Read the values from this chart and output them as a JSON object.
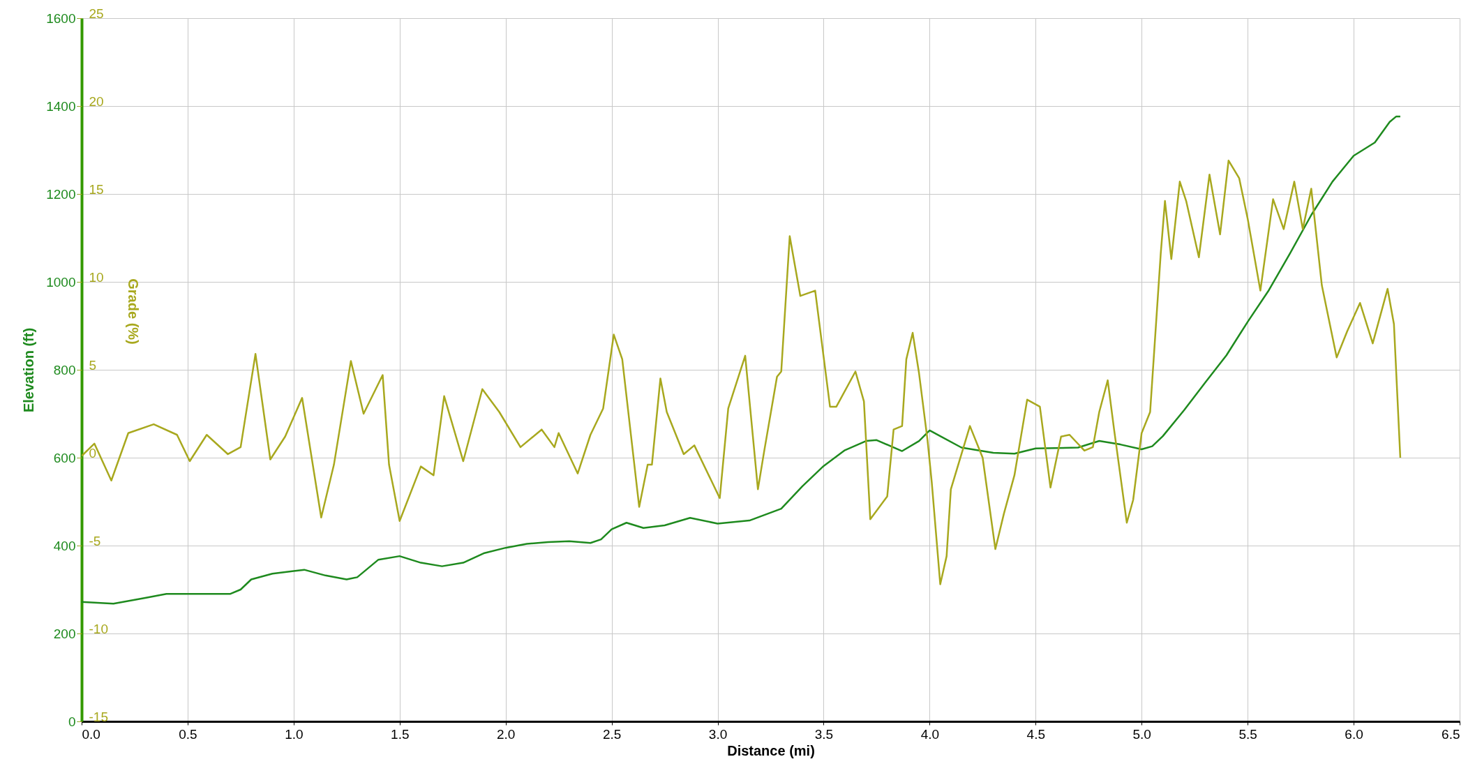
{
  "chart_data": {
    "type": "line",
    "xlabel": "Distance (mi)",
    "ylabel": "Elevation (ft)",
    "y2label": "Grade (%)",
    "xlim": [
      0,
      6.5
    ],
    "xticks": [
      {
        "value": 0,
        "label": "0.0"
      },
      0.5,
      {
        "value": 1,
        "label": "1.0"
      },
      1.5,
      {
        "value": 2,
        "label": "2.0"
      },
      2.5,
      {
        "value": 3,
        "label": "3.0"
      },
      3.5,
      {
        "value": 4,
        "label": "4.0"
      },
      4.5,
      {
        "value": 5,
        "label": "5.0"
      },
      5.5,
      {
        "value": 6,
        "label": "6.0"
      },
      6.5
    ],
    "ylim": [
      0,
      1600
    ],
    "yticks": [
      0,
      200,
      400,
      600,
      800,
      1000,
      1200,
      1400,
      1600
    ],
    "y2lim": [
      -15,
      25
    ],
    "y2ticks": [
      -15,
      -10,
      -5,
      0,
      5,
      10,
      15,
      20,
      25
    ],
    "grid": true,
    "marker": "none",
    "line_style": "solid",
    "series": [
      {
        "color": "#1e8a1e",
        "axis": "y",
        "x": [
          0,
          0.15,
          0.3,
          0.4,
          0.5,
          0.7,
          0.75,
          0.8,
          0.9,
          1.0,
          1.05,
          1.15,
          1.25,
          1.3,
          1.4,
          1.5,
          1.6,
          1.7,
          1.8,
          1.9,
          2.0,
          2.1,
          2.2,
          2.3,
          2.4,
          2.45,
          2.5,
          2.57,
          2.65,
          2.75,
          2.87,
          3.0,
          3.15,
          3.3,
          3.4,
          3.5,
          3.6,
          3.7,
          3.75,
          3.87,
          3.95,
          4.0,
          4.05,
          4.15,
          4.3,
          4.4,
          4.5,
          4.7,
          4.8,
          4.9,
          5.0,
          5.05,
          5.1,
          5.2,
          5.3,
          5.4,
          5.5,
          5.6,
          5.7,
          5.8,
          5.9,
          6.0,
          6.1,
          6.17,
          6.2,
          6.22
        ],
        "values": [
          272,
          268,
          281,
          290,
          290,
          290,
          300,
          323,
          336,
          342,
          345,
          332,
          323,
          328,
          368,
          376,
          361,
          353,
          361,
          383,
          395,
          404,
          408,
          410,
          406,
          414,
          437,
          452,
          440,
          446,
          463,
          450,
          457,
          484,
          535,
          581,
          617,
          638,
          640,
          615,
          638,
          662,
          649,
          623,
          611,
          609,
          621,
          623,
          638,
          630,
          619,
          626,
          649,
          708,
          771,
          833,
          909,
          981,
          1065,
          1152,
          1228,
          1287,
          1317,
          1364,
          1376,
          1376
        ]
      },
      {
        "color": "#a8a81e",
        "axis": "y2",
        "x": [
          0,
          0.06,
          0.14,
          0.22,
          0.34,
          0.45,
          0.51,
          0.59,
          0.69,
          0.75,
          0.82,
          0.89,
          0.96,
          1.04,
          1.13,
          1.19,
          1.27,
          1.33,
          1.42,
          1.45,
          1.5,
          1.6,
          1.66,
          1.71,
          1.8,
          1.89,
          1.97,
          2.07,
          2.17,
          2.23,
          2.25,
          2.34,
          2.4,
          2.46,
          2.51,
          2.55,
          2.63,
          2.67,
          2.69,
          2.73,
          2.76,
          2.84,
          2.89,
          3.01,
          3.05,
          3.13,
          3.19,
          3.22,
          3.28,
          3.3,
          3.34,
          3.39,
          3.46,
          3.53,
          3.56,
          3.65,
          3.69,
          3.72,
          3.8,
          3.83,
          3.87,
          3.89,
          3.92,
          3.95,
          3.99,
          4.01,
          4.05,
          4.08,
          4.1,
          4.19,
          4.25,
          4.31,
          4.35,
          4.4,
          4.46,
          4.52,
          4.57,
          4.62,
          4.66,
          4.73,
          4.77,
          4.8,
          4.84,
          4.87,
          4.93,
          4.96,
          5.0,
          5.04,
          5.09,
          5.11,
          5.14,
          5.18,
          5.21,
          5.27,
          5.32,
          5.37,
          5.41,
          5.46,
          5.5,
          5.56,
          5.62,
          5.67,
          5.72,
          5.76,
          5.8,
          5.85,
          5.92,
          5.97,
          6.03,
          6.09,
          6.16,
          6.19,
          6.22
        ],
        "values": [
          0.1,
          0.8,
          -1.3,
          1.4,
          1.9,
          1.3,
          -0.2,
          1.3,
          0.2,
          0.6,
          5.9,
          -0.1,
          1.2,
          3.4,
          -3.4,
          -0.4,
          5.5,
          2.5,
          4.7,
          -0.4,
          -3.6,
          -0.5,
          -1.0,
          3.5,
          -0.2,
          3.9,
          2.6,
          0.6,
          1.6,
          0.6,
          1.4,
          -0.9,
          1.3,
          2.8,
          7.0,
          5.6,
          -2.8,
          -0.4,
          -0.4,
          4.5,
          2.6,
          0.2,
          0.7,
          -2.3,
          2.8,
          5.8,
          -1.8,
          0.4,
          4.6,
          4.9,
          12.6,
          9.2,
          9.5,
          2.9,
          2.9,
          4.9,
          3.2,
          -3.5,
          -2.2,
          1.6,
          1.8,
          5.6,
          7.1,
          4.8,
          1.0,
          -1.4,
          -7.2,
          -5.6,
          -1.8,
          1.8,
          0.0,
          -5.2,
          -3.2,
          -1.0,
          3.3,
          2.9,
          -1.7,
          1.2,
          1.3,
          0.4,
          0.6,
          2.6,
          4.4,
          1.6,
          -3.7,
          -2.4,
          1.4,
          2.6,
          11.6,
          14.6,
          11.3,
          15.7,
          14.6,
          11.4,
          16.1,
          12.7,
          16.9,
          15.9,
          13.6,
          9.5,
          14.7,
          13.0,
          15.7,
          13.0,
          15.3,
          9.8,
          5.7,
          7.2,
          8.8,
          6.5,
          9.6,
          7.6,
          0.0
        ]
      }
    ]
  }
}
